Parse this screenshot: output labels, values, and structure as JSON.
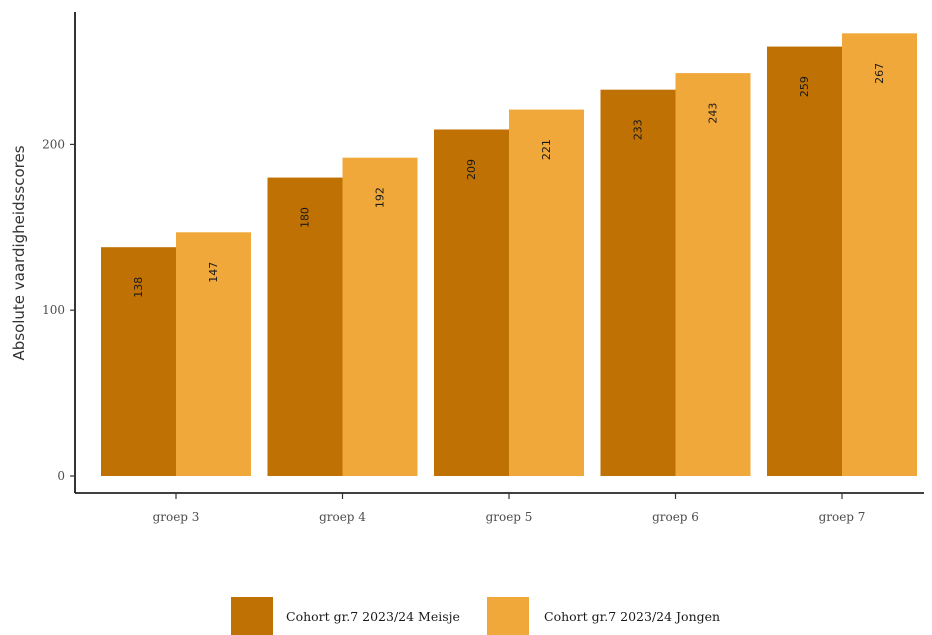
{
  "chart_data": {
    "type": "bar",
    "categories": [
      "groep 3",
      "groep 4",
      "groep 5",
      "groep 6",
      "groep 7"
    ],
    "series": [
      {
        "name": "Cohort gr.7 2023/24 Meisje",
        "values": [
          138,
          180,
          209,
          233,
          259
        ],
        "color": "#BF7103"
      },
      {
        "name": "Cohort gr.7 2023/24 Jongen",
        "values": [
          147,
          192,
          221,
          243,
          267
        ],
        "color": "#F1A83A"
      }
    ],
    "title": "",
    "xlabel": "",
    "ylabel": "Absolute vaardigheidsscores",
    "ylim": [
      0,
      280
    ],
    "yticks": [
      0,
      100,
      200
    ],
    "grid": false,
    "legend_position": "bottom"
  }
}
